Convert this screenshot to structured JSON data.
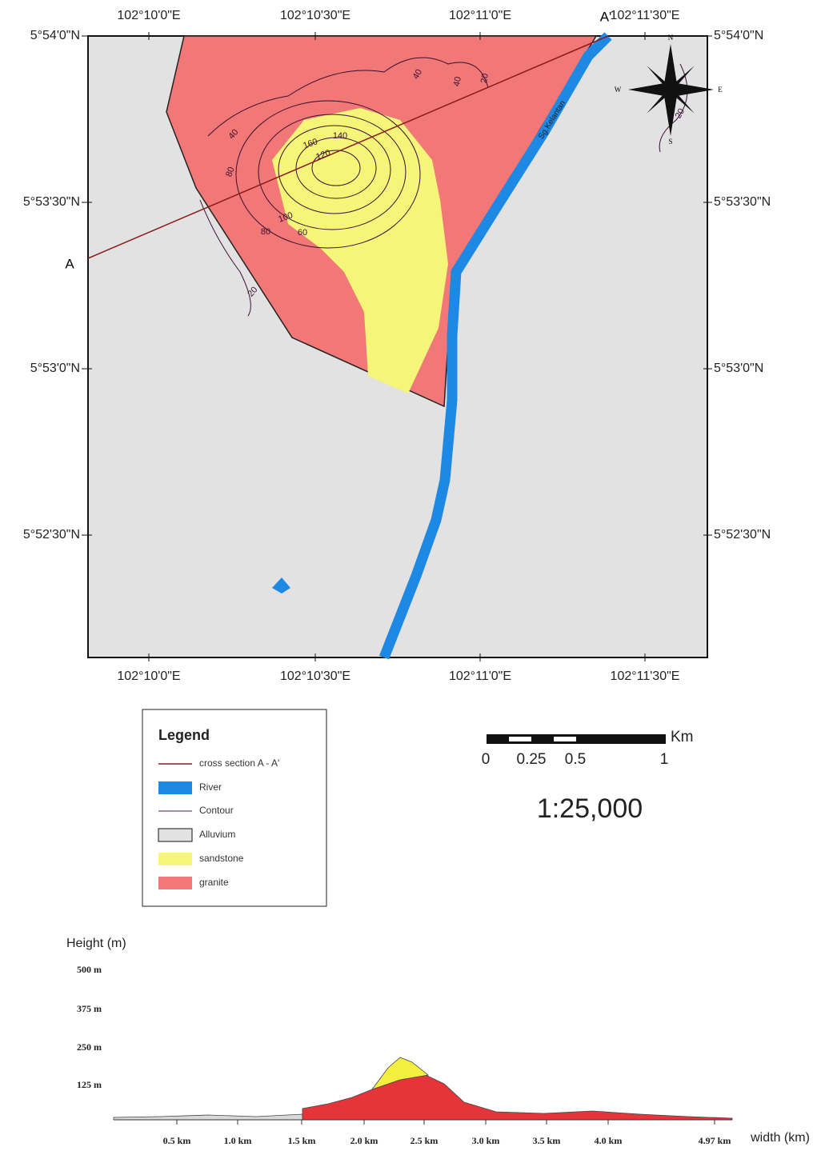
{
  "map": {
    "top_labels": [
      "102°10'0\"E",
      "102°10'30\"E",
      "102°11'0\"E",
      "102°11'30\"E"
    ],
    "side_labels": [
      "5°54'0\"N",
      "5°53'30\"N",
      "5°53'0\"N",
      "5°52'30\"N"
    ],
    "section_start": "A",
    "section_end": "A'",
    "river_name": "Sg.Kelantan",
    "contour_labels": [
      "40",
      "80",
      "20",
      "140",
      "160",
      "120",
      "100",
      "80",
      "60",
      "20",
      "40",
      "40",
      "20"
    ],
    "compass": {
      "north": "N",
      "east": "E",
      "south": "S",
      "west": "W"
    }
  },
  "legend": {
    "title": "Legend",
    "items": [
      "cross section A - A'",
      "River",
      "Contour",
      "Alluvium",
      "sandstone",
      "granite"
    ]
  },
  "scale": {
    "unit": "Km",
    "ticks": [
      "0",
      "0.25",
      "0.5",
      "1"
    ],
    "ratio": "1:25,000"
  },
  "profile": {
    "y_title": "Height (m)",
    "y_labels": [
      "500 m",
      "375 m",
      "250 m",
      "125 m"
    ],
    "x_labels": [
      "0.5 km",
      "1.0 km",
      "1.5 km",
      "2.0 km",
      "2.5 km",
      "3.0 km",
      "3.5 km",
      "4.0 km",
      "4.97 km"
    ],
    "x_title": "width (km)"
  }
}
